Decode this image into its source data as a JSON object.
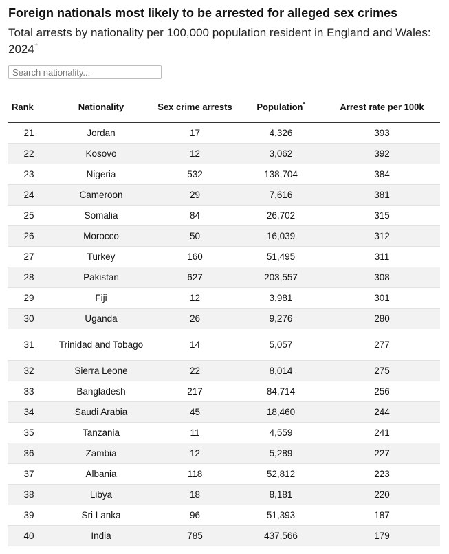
{
  "header": {
    "title": "Foreign nationals most likely to be arrested for alleged sex crimes",
    "subtitle": "Total arrests by nationality per 100,000 population resident in England and Wales: 2024",
    "subtitle_mark": "†"
  },
  "search": {
    "placeholder": "Search nationality...",
    "value": ""
  },
  "table": {
    "columns": {
      "rank": "Rank",
      "nationality": "Nationality",
      "arrests": "Sex crime arrests",
      "population": "Population",
      "population_mark": "*",
      "rate": "Arrest rate per 100k"
    },
    "rows": [
      {
        "rank": "21",
        "nationality": "Jordan",
        "arrests": "17",
        "population": "4,326",
        "rate": "393"
      },
      {
        "rank": "22",
        "nationality": "Kosovo",
        "arrests": "12",
        "population": "3,062",
        "rate": "392"
      },
      {
        "rank": "23",
        "nationality": "Nigeria",
        "arrests": "532",
        "population": "138,704",
        "rate": "384"
      },
      {
        "rank": "24",
        "nationality": "Cameroon",
        "arrests": "29",
        "population": "7,616",
        "rate": "381"
      },
      {
        "rank": "25",
        "nationality": "Somalia",
        "arrests": "84",
        "population": "26,702",
        "rate": "315"
      },
      {
        "rank": "26",
        "nationality": "Morocco",
        "arrests": "50",
        "population": "16,039",
        "rate": "312"
      },
      {
        "rank": "27",
        "nationality": "Turkey",
        "arrests": "160",
        "population": "51,495",
        "rate": "311"
      },
      {
        "rank": "28",
        "nationality": "Pakistan",
        "arrests": "627",
        "population": "203,557",
        "rate": "308"
      },
      {
        "rank": "29",
        "nationality": "Fiji",
        "arrests": "12",
        "population": "3,981",
        "rate": "301"
      },
      {
        "rank": "30",
        "nationality": "Uganda",
        "arrests": "26",
        "population": "9,276",
        "rate": "280"
      },
      {
        "rank": "31",
        "nationality": "Trinidad and Tobago",
        "arrests": "14",
        "population": "5,057",
        "rate": "277"
      },
      {
        "rank": "32",
        "nationality": "Sierra Leone",
        "arrests": "22",
        "population": "8,014",
        "rate": "275"
      },
      {
        "rank": "33",
        "nationality": "Bangladesh",
        "arrests": "217",
        "population": "84,714",
        "rate": "256"
      },
      {
        "rank": "34",
        "nationality": "Saudi Arabia",
        "arrests": "45",
        "population": "18,460",
        "rate": "244"
      },
      {
        "rank": "35",
        "nationality": "Tanzania",
        "arrests": "11",
        "population": "4,559",
        "rate": "241"
      },
      {
        "rank": "36",
        "nationality": "Zambia",
        "arrests": "12",
        "population": "5,289",
        "rate": "227"
      },
      {
        "rank": "37",
        "nationality": "Albania",
        "arrests": "118",
        "population": "52,812",
        "rate": "223"
      },
      {
        "rank": "38",
        "nationality": "Libya",
        "arrests": "18",
        "population": "8,181",
        "rate": "220"
      },
      {
        "rank": "39",
        "nationality": "Sri Lanka",
        "arrests": "96",
        "population": "51,393",
        "rate": "187"
      },
      {
        "rank": "40",
        "nationality": "India",
        "arrests": "785",
        "population": "437,566",
        "rate": "179"
      }
    ]
  }
}
